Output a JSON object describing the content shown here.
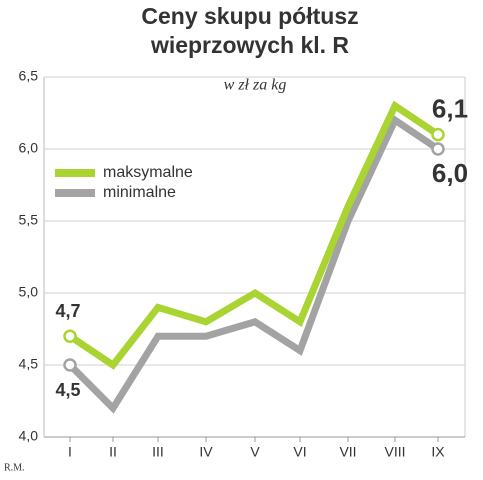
{
  "chart_data": {
    "type": "line",
    "title": [
      "Ceny skupu półtusz",
      "wieprzowych kl. R"
    ],
    "subtitle": "w zł za kg",
    "credit": "R.M.",
    "categories": [
      "I",
      "II",
      "III",
      "IV",
      "V",
      "VI",
      "VII",
      "VIII",
      "IX"
    ],
    "series": [
      {
        "name": "maksymalne",
        "color": "#a9d431",
        "values": [
          4.7,
          4.5,
          4.9,
          4.8,
          5.0,
          4.8,
          5.6,
          6.3,
          6.1
        ],
        "value_labels": [
          "4,7",
          null,
          null,
          null,
          null,
          null,
          null,
          null,
          "6,1"
        ]
      },
      {
        "name": "minimalne",
        "color": "#a3a3a3",
        "values": [
          4.5,
          4.2,
          4.7,
          4.7,
          4.8,
          4.6,
          5.5,
          6.2,
          6.0
        ],
        "value_labels": [
          "4,5",
          null,
          null,
          null,
          null,
          null,
          null,
          null,
          "6,0"
        ]
      }
    ],
    "ylim": [
      4.0,
      6.5
    ],
    "yticks": [
      {
        "value": 4.0,
        "label": "4,0"
      },
      {
        "value": 4.5,
        "label": "4,5"
      },
      {
        "value": 5.0,
        "label": "5,0"
      },
      {
        "value": 5.5,
        "label": "5,5"
      },
      {
        "value": 6.0,
        "label": "6,0"
      },
      {
        "value": 6.5,
        "label": "6,5"
      }
    ],
    "grid": true
  }
}
